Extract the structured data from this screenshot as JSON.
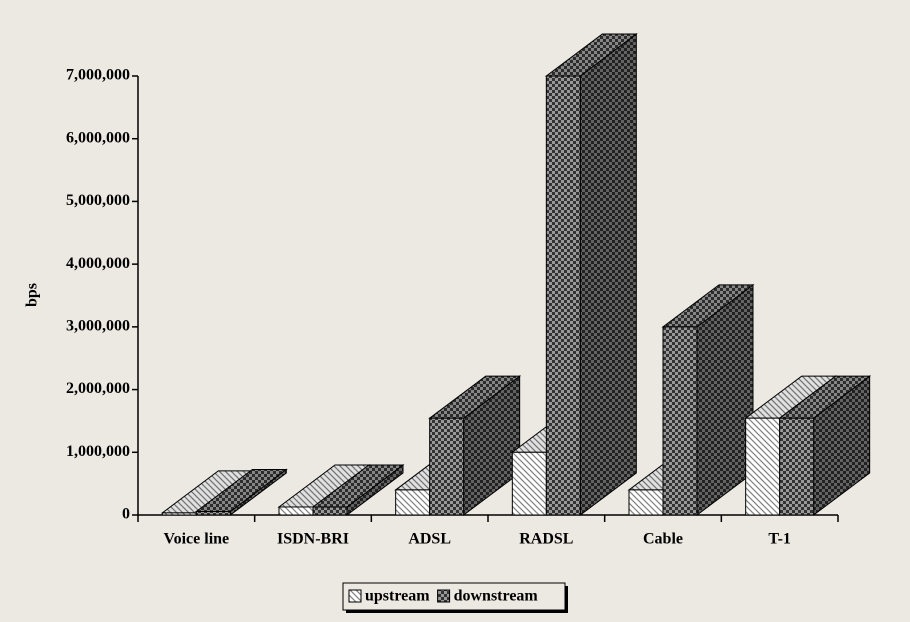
{
  "chart_data": {
    "type": "bar3d",
    "y_label": "bps",
    "categories": [
      "Voice line",
      "ISDN-BRI",
      "ADSL",
      "RADSL",
      "Cable",
      "T-1"
    ],
    "series": [
      {
        "name": "upstream",
        "color": "#ffffff",
        "pattern": "hatch",
        "pattern_color": "#808080",
        "values": [
          33600,
          128000,
          400000,
          1000000,
          400000,
          1544000
        ]
      },
      {
        "name": "downstream",
        "color": "#999999",
        "pattern": "checker",
        "pattern_color": "#333333",
        "values": [
          56000,
          128000,
          1544000,
          7000000,
          3000000,
          1544000
        ]
      }
    ],
    "ylim": [
      0,
      7000000
    ],
    "yticks": [
      0,
      {
        "value": 1000000,
        "label": "1,000,000"
      },
      {
        "value": 2000000,
        "label": "2,000,000"
      },
      {
        "value": 3000000,
        "label": "3,000,000"
      },
      {
        "value": 4000000,
        "label": "4,000,000"
      },
      {
        "value": 5000000,
        "label": "5,000,000"
      },
      {
        "value": 6000000,
        "label": "6,000,000"
      },
      {
        "value": 7000000,
        "label": "7,000,000"
      }
    ],
    "grid": false,
    "legend": "bottom"
  }
}
